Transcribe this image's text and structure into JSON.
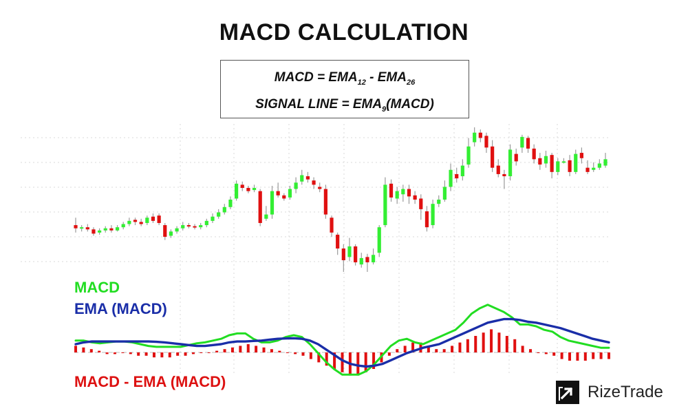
{
  "title": "MACD CALCULATION",
  "formula": {
    "line1_prefix": "MACD = EMA",
    "line1_sub1": "12",
    "line1_mid": " - EMA",
    "line1_sub2": "26",
    "line2_prefix": "SIGNAL LINE = EMA",
    "line2_sub": "9",
    "line2_suffix": "(MACD)"
  },
  "legend": {
    "macd": "MACD",
    "ema": "EMA (MACD)",
    "hist": "MACD - EMA (MACD)"
  },
  "brand": {
    "name": "RizeTrade",
    "icon": "rizetrade-logo-icon"
  },
  "colors": {
    "up": "#33ee33",
    "down": "#e01010",
    "macd_line": "#22dd22",
    "signal_line": "#1a2ea8",
    "histogram": "#e01010",
    "grid": "#d8d8d8"
  },
  "chart_data": [
    {
      "type": "candlestick",
      "note_units": "relative price (higher = higher price)",
      "candles": [
        {
          "o": 50,
          "c": 47,
          "h": 57,
          "l": 43
        },
        {
          "o": 47,
          "c": 48,
          "h": 50,
          "l": 44
        },
        {
          "o": 48,
          "c": 46,
          "h": 51,
          "l": 44
        },
        {
          "o": 46,
          "c": 42,
          "h": 48,
          "l": 40
        },
        {
          "o": 43,
          "c": 45,
          "h": 47,
          "l": 41
        },
        {
          "o": 45,
          "c": 47,
          "h": 49,
          "l": 43
        },
        {
          "o": 47,
          "c": 45,
          "h": 50,
          "l": 43
        },
        {
          "o": 45,
          "c": 48,
          "h": 50,
          "l": 44
        },
        {
          "o": 48,
          "c": 51,
          "h": 53,
          "l": 46
        },
        {
          "o": 51,
          "c": 54,
          "h": 57,
          "l": 49
        },
        {
          "o": 55,
          "c": 53,
          "h": 57,
          "l": 50
        },
        {
          "o": 53,
          "c": 51,
          "h": 56,
          "l": 49
        },
        {
          "o": 52,
          "c": 57,
          "h": 59,
          "l": 50
        },
        {
          "o": 58,
          "c": 54,
          "h": 61,
          "l": 52
        },
        {
          "o": 59,
          "c": 52,
          "h": 61,
          "l": 50
        },
        {
          "o": 50,
          "c": 39,
          "h": 52,
          "l": 36
        },
        {
          "o": 40,
          "c": 44,
          "h": 46,
          "l": 38
        },
        {
          "o": 44,
          "c": 47,
          "h": 49,
          "l": 42
        },
        {
          "o": 47,
          "c": 50,
          "h": 53,
          "l": 45
        },
        {
          "o": 50,
          "c": 49,
          "h": 52,
          "l": 47
        },
        {
          "o": 49,
          "c": 48,
          "h": 51,
          "l": 46
        },
        {
          "o": 48,
          "c": 50,
          "h": 52,
          "l": 46
        },
        {
          "o": 50,
          "c": 54,
          "h": 56,
          "l": 48
        },
        {
          "o": 54,
          "c": 58,
          "h": 61,
          "l": 52
        },
        {
          "o": 58,
          "c": 62,
          "h": 65,
          "l": 56
        },
        {
          "o": 62,
          "c": 67,
          "h": 70,
          "l": 60
        },
        {
          "o": 67,
          "c": 74,
          "h": 77,
          "l": 65
        },
        {
          "o": 75,
          "c": 89,
          "h": 92,
          "l": 73
        },
        {
          "o": 88,
          "c": 85,
          "h": 91,
          "l": 82
        },
        {
          "o": 85,
          "c": 82,
          "h": 87,
          "l": 80
        },
        {
          "o": 83,
          "c": 85,
          "h": 88,
          "l": 81
        },
        {
          "o": 82,
          "c": 52,
          "h": 84,
          "l": 49
        },
        {
          "o": 56,
          "c": 60,
          "h": 68,
          "l": 54
        },
        {
          "o": 60,
          "c": 82,
          "h": 87,
          "l": 56
        },
        {
          "o": 82,
          "c": 78,
          "h": 90,
          "l": 76
        },
        {
          "o": 78,
          "c": 75,
          "h": 80,
          "l": 73
        },
        {
          "o": 76,
          "c": 84,
          "h": 87,
          "l": 74
        },
        {
          "o": 84,
          "c": 90,
          "h": 95,
          "l": 80
        },
        {
          "o": 91,
          "c": 97,
          "h": 102,
          "l": 88
        },
        {
          "o": 96,
          "c": 93,
          "h": 100,
          "l": 90
        },
        {
          "o": 92,
          "c": 88,
          "h": 95,
          "l": 84
        },
        {
          "o": 86,
          "c": 84,
          "h": 90,
          "l": 81
        },
        {
          "o": 84,
          "c": 60,
          "h": 88,
          "l": 56
        },
        {
          "o": 57,
          "c": 43,
          "h": 59,
          "l": 39
        },
        {
          "o": 41,
          "c": 28,
          "h": 43,
          "l": 22
        },
        {
          "o": 28,
          "c": 17,
          "h": 32,
          "l": 6
        },
        {
          "o": 20,
          "c": 30,
          "h": 38,
          "l": 16
        },
        {
          "o": 30,
          "c": 15,
          "h": 32,
          "l": 12
        },
        {
          "o": 13,
          "c": 19,
          "h": 24,
          "l": 10
        },
        {
          "o": 20,
          "c": 15,
          "h": 23,
          "l": 6
        },
        {
          "o": 15,
          "c": 22,
          "h": 28,
          "l": 13
        },
        {
          "o": 24,
          "c": 48,
          "h": 50,
          "l": 20
        },
        {
          "o": 50,
          "c": 88,
          "h": 95,
          "l": 48
        },
        {
          "o": 89,
          "c": 76,
          "h": 93,
          "l": 72
        },
        {
          "o": 75,
          "c": 82,
          "h": 86,
          "l": 70
        },
        {
          "o": 79,
          "c": 84,
          "h": 88,
          "l": 72
        },
        {
          "o": 84,
          "c": 77,
          "h": 88,
          "l": 70
        },
        {
          "o": 78,
          "c": 74,
          "h": 82,
          "l": 70
        },
        {
          "o": 75,
          "c": 65,
          "h": 79,
          "l": 55
        },
        {
          "o": 63,
          "c": 48,
          "h": 68,
          "l": 44
        },
        {
          "o": 50,
          "c": 70,
          "h": 74,
          "l": 47
        },
        {
          "o": 70,
          "c": 74,
          "h": 78,
          "l": 67
        },
        {
          "o": 74,
          "c": 86,
          "h": 92,
          "l": 72
        },
        {
          "o": 86,
          "c": 102,
          "h": 108,
          "l": 82
        },
        {
          "o": 98,
          "c": 94,
          "h": 104,
          "l": 90
        },
        {
          "o": 96,
          "c": 106,
          "h": 112,
          "l": 92
        },
        {
          "o": 107,
          "c": 124,
          "h": 132,
          "l": 104
        },
        {
          "o": 128,
          "c": 137,
          "h": 142,
          "l": 124
        },
        {
          "o": 137,
          "c": 132,
          "h": 140,
          "l": 128
        },
        {
          "o": 134,
          "c": 123,
          "h": 137,
          "l": 118
        },
        {
          "o": 124,
          "c": 104,
          "h": 130,
          "l": 100
        },
        {
          "o": 106,
          "c": 98,
          "h": 112,
          "l": 95
        },
        {
          "o": 98,
          "c": 96,
          "h": 102,
          "l": 84
        },
        {
          "o": 96,
          "c": 121,
          "h": 126,
          "l": 92
        },
        {
          "o": 117,
          "c": 110,
          "h": 122,
          "l": 106
        },
        {
          "o": 123,
          "c": 133,
          "h": 135,
          "l": 118
        },
        {
          "o": 132,
          "c": 122,
          "h": 134,
          "l": 118
        },
        {
          "o": 122,
          "c": 112,
          "h": 126,
          "l": 108
        },
        {
          "o": 113,
          "c": 107,
          "h": 118,
          "l": 102
        },
        {
          "o": 108,
          "c": 115,
          "h": 120,
          "l": 104
        },
        {
          "o": 116,
          "c": 100,
          "h": 118,
          "l": 94
        },
        {
          "o": 100,
          "c": 110,
          "h": 113,
          "l": 97
        },
        {
          "o": 110,
          "c": 110,
          "h": 113,
          "l": 108
        },
        {
          "o": 111,
          "c": 100,
          "h": 116,
          "l": 96
        },
        {
          "o": 100,
          "c": 117,
          "h": 121,
          "l": 98
        },
        {
          "o": 118,
          "c": 113,
          "h": 123,
          "l": 108
        },
        {
          "o": 104,
          "c": 100,
          "h": 111,
          "l": 98
        },
        {
          "o": 102,
          "c": 104,
          "h": 109,
          "l": 100
        },
        {
          "o": 104,
          "c": 108,
          "h": 112,
          "l": 102
        },
        {
          "o": 106,
          "c": 112,
          "h": 118,
          "l": 104
        }
      ]
    },
    {
      "type": "line",
      "series": [
        {
          "name": "MACD",
          "values": [
            2,
            2,
            1,
            0.5,
            1,
            1.5,
            1.5,
            1,
            0,
            -1,
            -1.5,
            -1.5,
            -1.5,
            -1.5,
            -0.5,
            0.5,
            1,
            2,
            3,
            5,
            6,
            6,
            3,
            1,
            1,
            2,
            4,
            5,
            4,
            0,
            -5,
            -10,
            -14,
            -17,
            -17,
            -17,
            -15,
            -11,
            -6,
            -1,
            2,
            3,
            1,
            0,
            2,
            4,
            6,
            8,
            12,
            17,
            20,
            22,
            20,
            18,
            15,
            11,
            11,
            10,
            8,
            7,
            4,
            2,
            1,
            0,
            -1,
            -2,
            -2
          ]
        },
        {
          "name": "EMA (MACD)",
          "values": [
            0,
            1,
            1.5,
            1.5,
            1.5,
            1.5,
            1.5,
            1.5,
            1.5,
            1.5,
            1.3,
            1,
            0.5,
            0,
            -0.5,
            -1,
            -1,
            -0.5,
            0,
            1,
            1.5,
            1.5,
            1.8,
            2,
            2.5,
            3,
            3.2,
            3.3,
            3,
            2,
            0,
            -3,
            -6,
            -9,
            -11,
            -12,
            -12.5,
            -12,
            -11,
            -9,
            -7,
            -5,
            -3.5,
            -2,
            -1,
            0,
            2,
            4,
            6,
            8,
            10,
            12,
            13,
            14,
            14,
            13.5,
            12.5,
            12,
            11,
            10,
            9,
            7.5,
            6,
            4.5,
            3,
            2,
            1
          ]
        }
      ]
    },
    {
      "type": "bar",
      "name": "MACD - EMA (MACD)",
      "values": [
        2,
        1.5,
        1,
        0.5,
        -0.5,
        -0.5,
        0,
        -0.5,
        -1,
        -1,
        -1.5,
        -1.5,
        -1.5,
        -1,
        -1,
        -0.5,
        0,
        0,
        0.5,
        1,
        1.5,
        2,
        2.5,
        2,
        1.5,
        1,
        0.5,
        0,
        -0.5,
        -1,
        -2,
        -3,
        -4,
        -5,
        -6,
        -7,
        -7,
        -6,
        -5,
        -3,
        -1,
        1,
        2,
        3,
        3,
        2,
        1,
        1,
        2,
        3,
        4,
        5,
        6,
        7,
        6,
        5,
        4,
        2,
        1,
        0,
        -0.5,
        -1,
        -2,
        -2.5,
        -2.5,
        -2.5,
        -2,
        -2,
        -2
      ]
    }
  ]
}
